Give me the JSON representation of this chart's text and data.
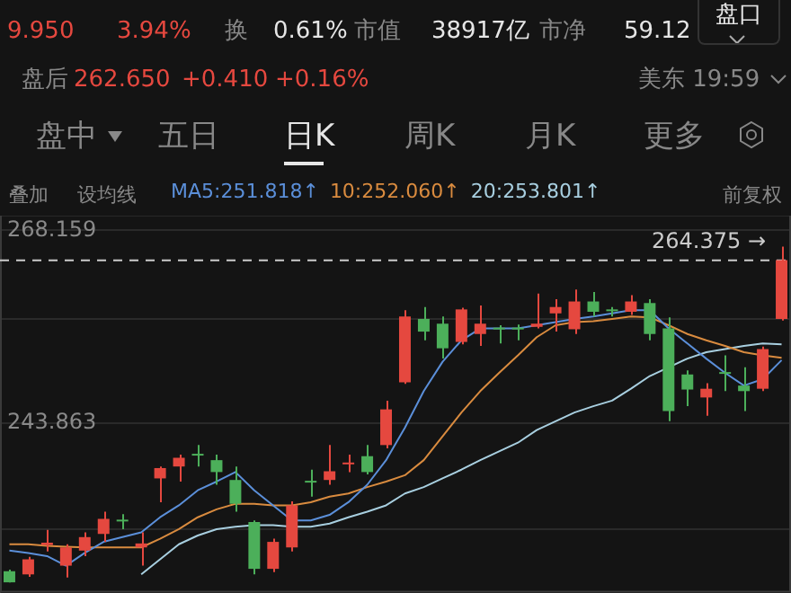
{
  "chart_data": {
    "type": "candlestick",
    "annotations": [
      "9.950",
      "3.94%",
      "换",
      "0.61%",
      "市值",
      "38917亿",
      "市净",
      "59.12",
      "盘口",
      "盘后",
      "262.650",
      "+0.410",
      "+0.16%",
      "美东 19:59",
      "盘中",
      "五日",
      "日K",
      "周K",
      "月K",
      "更多",
      "叠加",
      "设均线",
      "前复权"
    ],
    "categories": [
      null,
      null,
      null,
      null,
      null,
      null,
      null,
      null,
      null,
      null,
      null,
      null,
      null,
      null,
      null,
      null,
      null,
      null,
      null,
      null,
      null,
      null,
      null,
      null,
      null,
      null,
      null,
      null,
      null,
      null,
      null,
      null,
      null,
      null,
      null,
      null,
      null,
      null,
      null,
      null,
      null,
      null
    ],
    "ohlc": [
      [
        225.2,
        225.4,
        223.78,
        223.8
      ],
      [
        224.8,
        227.0,
        224.5,
        226.7
      ],
      [
        228.5,
        230.4,
        227.7,
        228.8
      ],
      [
        225.9,
        228.6,
        224.4,
        228.2
      ],
      [
        227.8,
        230.1,
        227.1,
        229.5
      ],
      [
        229.9,
        232.7,
        228.9,
        231.8
      ],
      [
        231.7,
        232.4,
        230.5,
        231.5
      ],
      [
        228.2,
        230.1,
        225.9,
        228.7
      ],
      [
        236.9,
        238.4,
        233.9,
        238.2
      ],
      [
        238.4,
        239.9,
        236.5,
        239.5
      ],
      [
        240.0,
        241.1,
        238.4,
        239.8
      ],
      [
        239.2,
        239.9,
        236.1,
        237.7
      ],
      [
        236.7,
        238.4,
        232.7,
        233.7
      ],
      [
        231.4,
        231.6,
        224.8,
        225.5
      ],
      [
        225.5,
        229.3,
        225.1,
        228.9
      ],
      [
        228.2,
        234.0,
        227.7,
        233.5
      ],
      [
        236.6,
        238.0,
        234.6,
        236.4
      ],
      [
        236.7,
        241.1,
        236.1,
        237.8
      ],
      [
        238.7,
        239.9,
        237.7,
        238.9
      ],
      [
        239.7,
        241.1,
        237.4,
        237.7
      ],
      [
        241.1,
        246.7,
        240.7,
        245.6
      ],
      [
        249.0,
        258.1,
        248.8,
        257.3
      ],
      [
        257.0,
        258.5,
        254.3,
        255.4
      ],
      [
        256.4,
        257.3,
        252.0,
        253.3
      ],
      [
        254.1,
        258.4,
        253.8,
        258.2
      ],
      [
        255.1,
        258.7,
        253.6,
        256.4
      ],
      [
        255.9,
        256.2,
        253.9,
        255.7
      ],
      [
        255.9,
        256.3,
        254.3,
        255.7
      ],
      [
        256.0,
        260.2,
        255.8,
        256.4
      ],
      [
        257.7,
        259.5,
        255.4,
        258.5
      ],
      [
        255.7,
        260.7,
        255.1,
        259.2
      ],
      [
        259.2,
        260.4,
        257.3,
        257.9
      ],
      [
        258.2,
        258.5,
        257.3,
        258.0
      ],
      [
        257.9,
        260.0,
        257.5,
        259.2
      ],
      [
        259.0,
        259.5,
        254.3,
        255.1
      ],
      [
        255.8,
        257.2,
        244.1,
        245.4
      ],
      [
        250.0,
        250.5,
        246.0,
        248.1
      ],
      [
        247.1,
        248.9,
        244.8,
        248.2
      ],
      [
        250.3,
        252.4,
        247.9,
        250.1
      ],
      [
        248.6,
        250.9,
        245.4,
        247.9
      ],
      [
        248.2,
        253.5,
        247.9,
        253.2
      ],
      [
        257.0,
        266.1,
        256.8,
        264.4
      ]
    ],
    "colors": [
      "#4caf5a",
      "#e5483f",
      "#e5483f",
      "#e5483f",
      "#e5483f",
      "#e5483f",
      "#4caf5a",
      "#e5483f",
      "#e5483f",
      "#e5483f",
      "#4caf5a",
      "#4caf5a",
      "#4caf5a",
      "#4caf5a",
      "#e5483f",
      "#e5483f",
      "#4caf5a",
      "#e5483f",
      "#e5483f",
      "#4caf5a",
      "#e5483f",
      "#e5483f",
      "#4caf5a",
      "#4caf5a",
      "#e5483f",
      "#e5483f",
      "#4caf5a",
      "#4caf5a",
      "#e5483f",
      "#e5483f",
      "#e5483f",
      "#4caf5a",
      "#4caf5a",
      "#e5483f",
      "#4caf5a",
      "#4caf5a",
      "#4caf5a",
      "#e5483f",
      "#4caf5a",
      "#4caf5a",
      "#e5483f",
      "#e5483f"
    ],
    "series": [
      {
        "type": "line",
        "name": "MA5:251.818↑",
        "color": "#5b8fd9",
        "values": [
          227.8,
          227.5,
          227.1,
          225.9,
          227.5,
          228.9,
          229.5,
          230.1,
          232.0,
          233.5,
          235.4,
          236.5,
          237.7,
          235.4,
          233.5,
          231.6,
          231.6,
          232.3,
          233.9,
          236.1,
          239.2,
          243.3,
          247.9,
          251.6,
          254.3,
          255.8,
          255.8,
          255.8,
          256.2,
          256.6,
          257.0,
          257.3,
          257.7,
          258.1,
          258.1,
          255.8,
          253.9,
          252.0,
          250.2,
          248.6,
          249.4,
          251.8
        ]
      },
      {
        "type": "line",
        "name": "10:252.060↑",
        "color": "#d98b3f",
        "values": [
          228.6,
          228.6,
          228.4,
          228.3,
          228.2,
          228.2,
          228.2,
          228.2,
          229.3,
          230.5,
          232.0,
          233.0,
          233.7,
          233.7,
          233.5,
          233.5,
          233.9,
          234.6,
          235.0,
          235.8,
          236.5,
          237.3,
          239.2,
          242.2,
          245.2,
          247.9,
          250.2,
          252.4,
          254.7,
          256.2,
          256.6,
          256.7,
          257.0,
          257.3,
          257.2,
          256.2,
          255.1,
          254.3,
          253.6,
          252.8,
          252.4,
          252.1
        ]
      },
      {
        "type": "line",
        "name": "20:253.801↑",
        "color": "#a8cfe0",
        "values": [
          null,
          null,
          null,
          null,
          null,
          null,
          null,
          224.8,
          226.7,
          228.6,
          229.7,
          230.5,
          230.8,
          231.0,
          231.0,
          230.8,
          230.8,
          231.2,
          232.0,
          232.7,
          233.5,
          235.0,
          235.8,
          236.9,
          238.0,
          239.2,
          240.3,
          241.4,
          243.0,
          244.1,
          245.2,
          246.0,
          246.7,
          248.2,
          249.8,
          250.9,
          252.0,
          252.8,
          253.2,
          253.6,
          253.9,
          253.8
        ]
      }
    ],
    "ylim": [
      222.5,
      270.2
    ],
    "yticks": [
      268.159,
      {
        "value": 257.0,
        "label": null
      },
      243.863,
      {
        "value": 230.5,
        "label": null
      }
    ],
    "ref_lines": [
      {
        "axis": "y",
        "value": 264.375,
        "label": "264.375 →",
        "line_style": "dashed",
        "color": "#cccccc"
      }
    ],
    "grid": "y",
    "legend": "top",
    "tick_labels": "y",
    "marker": "none",
    "line_style": "solid"
  }
}
